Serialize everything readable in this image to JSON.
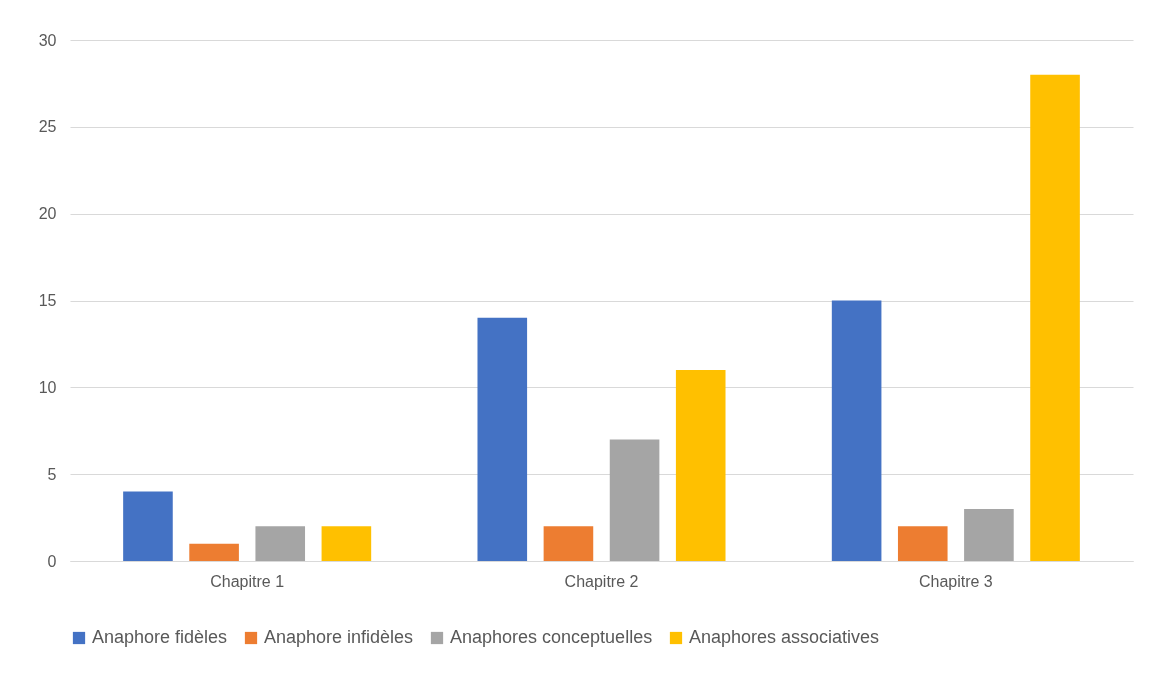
{
  "chart_data": {
    "type": "bar",
    "categories": [
      "Chapitre 1",
      "Chapitre 2",
      "Chapitre 3"
    ],
    "series": [
      {
        "name": "Anaphore fidèles",
        "color": "#4472c4",
        "values": [
          4,
          14,
          15
        ]
      },
      {
        "name": "Anaphore infidèles",
        "color": "#ed7d31",
        "values": [
          1,
          2,
          2
        ]
      },
      {
        "name": "Anaphores conceptuelles",
        "color": "#a5a5a5",
        "values": [
          2,
          7,
          3
        ]
      },
      {
        "name": "Anaphores associatives",
        "color": "#ffc000",
        "values": [
          2,
          11,
          28
        ]
      }
    ],
    "ylim": [
      0,
      30
    ],
    "yticks": [
      0,
      5,
      10,
      15,
      20,
      25,
      30
    ],
    "grid": "y",
    "legend": "bottom"
  }
}
